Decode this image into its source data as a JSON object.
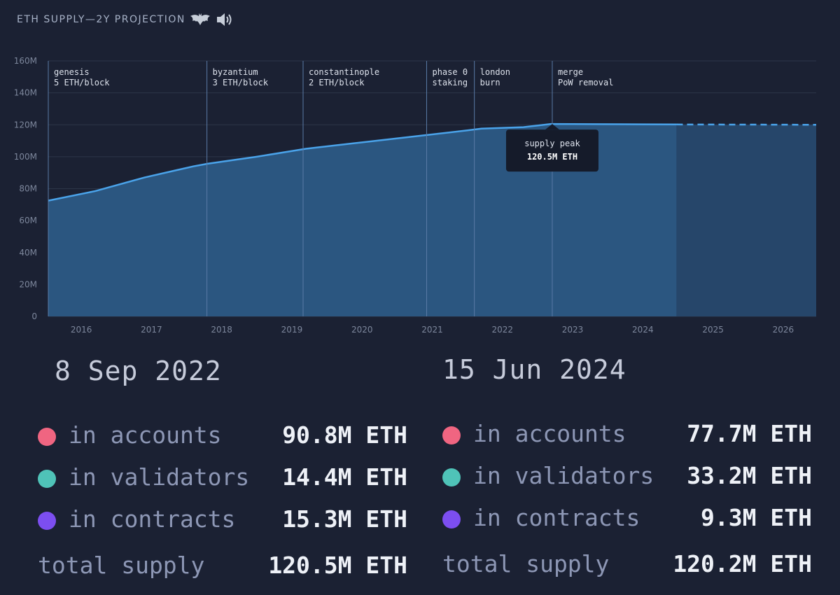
{
  "header": {
    "title": "ETH SUPPLY—2Y PROJECTION",
    "icons": [
      "bat-icon",
      "sound-icon"
    ]
  },
  "colors": {
    "background": "#1b2133",
    "line": "#4aa3ea",
    "area": "#2b5680",
    "projection_area": "#26466a",
    "grid": "#2c3548",
    "accounts": "#f06581",
    "validators": "#4fc3b8",
    "contracts": "#7c4ef0"
  },
  "chart_data": {
    "type": "area",
    "title": "ETH SUPPLY—2Y PROJECTION",
    "y_ticks": [
      "0",
      "20M",
      "40M",
      "60M",
      "80M",
      "100M",
      "120M",
      "140M",
      "160M"
    ],
    "ylim": [
      0,
      160
    ],
    "y_unit": "M ETH",
    "x_ticks": [
      "2016",
      "2017",
      "2018",
      "2019",
      "2020",
      "2021",
      "2022",
      "2023",
      "2024",
      "2025",
      "2026"
    ],
    "xlim": [
      2015.53,
      2026.47
    ],
    "grid": true,
    "series": [
      {
        "style": "solid",
        "x": [
          2015.53,
          2016.2,
          2016.9,
          2017.6,
          2017.8,
          2018.5,
          2019.2,
          2020.0,
          2020.9,
          2021.5,
          2021.7,
          2022.3,
          2022.69,
          2023.3,
          2024.0,
          2024.48
        ],
        "y": [
          72.5,
          78.5,
          87,
          94,
          95.6,
          100,
          105,
          109,
          113.5,
          116.5,
          117.6,
          118.5,
          120.5,
          120.4,
          120.3,
          120.2
        ]
      },
      {
        "style": "dashed",
        "x": [
          2024.48,
          2025.0,
          2025.5,
          2026.0,
          2026.47
        ],
        "y": [
          120.2,
          120.15,
          120.1,
          120.05,
          120.0
        ]
      }
    ],
    "projection_start": 2024.48,
    "events": [
      {
        "x": 2015.53,
        "name": "genesis",
        "detail": "5 ETH/block"
      },
      {
        "x": 2017.79,
        "name": "byzantium",
        "detail": "3 ETH/block"
      },
      {
        "x": 2019.16,
        "name": "constantinople",
        "detail": "2 ETH/block"
      },
      {
        "x": 2020.92,
        "name": "phase 0",
        "detail": "staking"
      },
      {
        "x": 2021.6,
        "name": "london",
        "detail": "burn"
      },
      {
        "x": 2022.71,
        "name": "merge",
        "detail": "PoW removal"
      }
    ],
    "annotation": {
      "x": 2022.71,
      "y": 120.5,
      "line1": "supply peak",
      "line2": "120.5M ETH"
    }
  },
  "panels": [
    {
      "date": "8 Sep 2022",
      "rows": [
        {
          "label": "in accounts",
          "value": "90.8M ETH",
          "color_key": "accounts"
        },
        {
          "label": "in validators",
          "value": "14.4M ETH",
          "color_key": "validators"
        },
        {
          "label": "in contracts",
          "value": "15.3M ETH",
          "color_key": "contracts"
        }
      ],
      "total_label": "total supply",
      "total_value": "120.5M ETH"
    },
    {
      "date": "15 Jun 2024",
      "rows": [
        {
          "label": "in accounts",
          "value": "77.7M ETH",
          "color_key": "accounts"
        },
        {
          "label": "in validators",
          "value": "33.2M ETH",
          "color_key": "validators"
        },
        {
          "label": "in contracts",
          "value": "9.3M ETH",
          "color_key": "contracts"
        }
      ],
      "total_label": "total supply",
      "total_value": "120.2M ETH"
    }
  ]
}
